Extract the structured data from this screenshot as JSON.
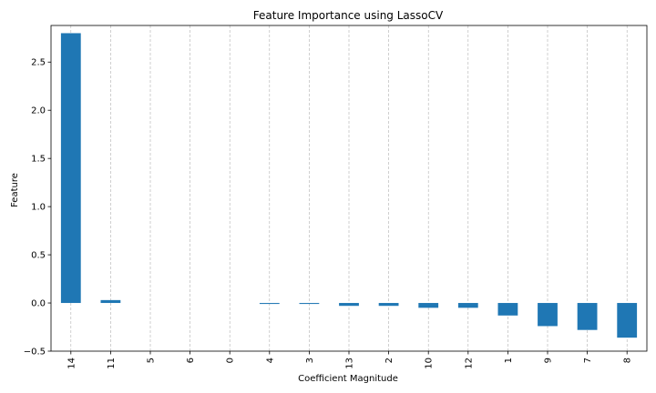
{
  "chart_data": {
    "type": "bar",
    "title": "Feature Importance using LassoCV",
    "xlabel": "Coefficient Magnitude",
    "ylabel": "Feature",
    "categories": [
      "14",
      "11",
      "5",
      "6",
      "0",
      "4",
      "3",
      "13",
      "2",
      "10",
      "12",
      "1",
      "9",
      "7",
      "8"
    ],
    "values": [
      2.8,
      0.03,
      0.0,
      0.0,
      0.0,
      -0.01,
      -0.01,
      -0.03,
      -0.03,
      -0.05,
      -0.05,
      -0.13,
      -0.24,
      -0.28,
      -0.36
    ],
    "ylim": [
      -0.5,
      2.88
    ],
    "yticks": [
      -0.5,
      0.0,
      0.5,
      1.0,
      1.5,
      2.0,
      2.5
    ],
    "ytick_labels": [
      "−0.5",
      "0.0",
      "0.5",
      "1.0",
      "1.5",
      "2.0",
      "2.5"
    ],
    "grid": "x dashed",
    "bar_color": "#1f77b4"
  }
}
